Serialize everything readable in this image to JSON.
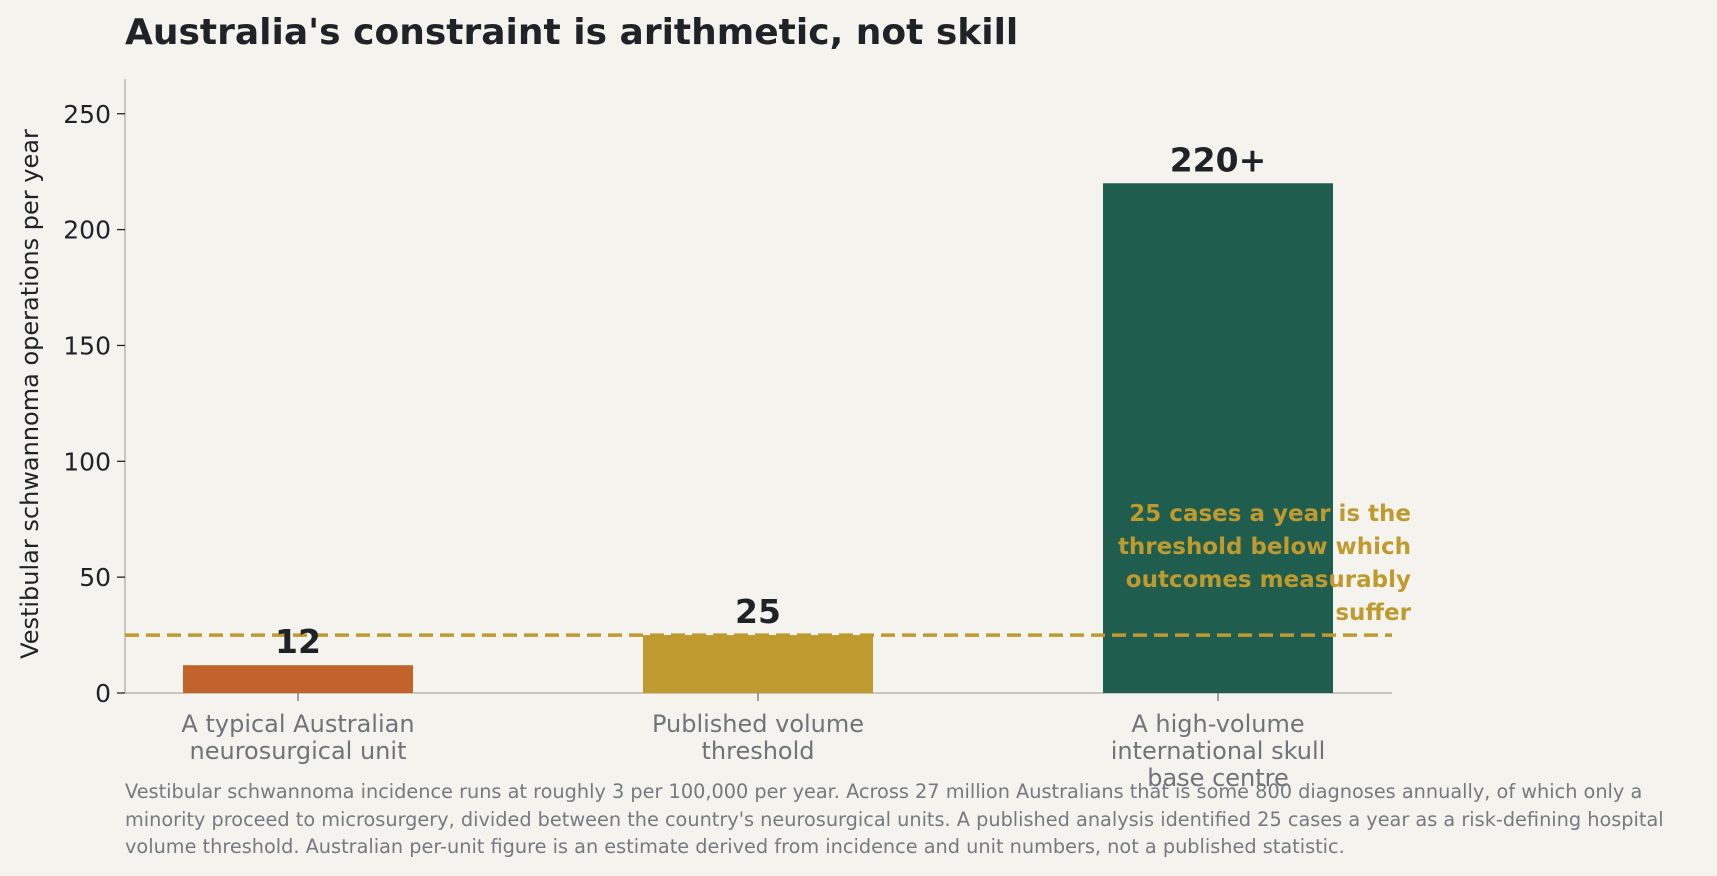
{
  "title": "Australia's constraint is arithmetic, not skill",
  "footnote": "Vestibular schwannoma incidence runs at roughly 3 per 100,000 per year. Across 27 million Australians that is some 800 diagnoses annually, of which only a minority proceed to microsurgery, divided between the country's neurosurgical units. A published analysis identified 25 cases a year as a risk-defining hospital volume threshold. Australian per-unit figure is an estimate derived from incidence and unit numbers, not a published statistic.",
  "chart_data": {
    "type": "bar",
    "title": "Australia's constraint is arithmetic, not skill",
    "xlabel": "",
    "ylabel": "Vestibular schwannoma operations per year",
    "ylim": [
      0,
      265
    ],
    "yticks": [
      0,
      50,
      100,
      150,
      200,
      250
    ],
    "grid": false,
    "categories": [
      [
        "A typical Australian",
        "neurosurgical unit"
      ],
      [
        "Published volume",
        "threshold"
      ],
      [
        "A high-volume",
        "international skull",
        "base centre"
      ]
    ],
    "values": [
      12,
      25,
      220
    ],
    "value_labels": [
      "12",
      "25",
      "220+"
    ],
    "colors": [
      "#c1632b",
      "#bf9a2f",
      "#1f5e4e"
    ],
    "reference_line": {
      "value": 25,
      "style": "dashed",
      "color": "#bf9a2f",
      "annotation": [
        "25 cases a year is the",
        "threshold below which",
        "outcomes measurably",
        "suffer"
      ]
    }
  }
}
